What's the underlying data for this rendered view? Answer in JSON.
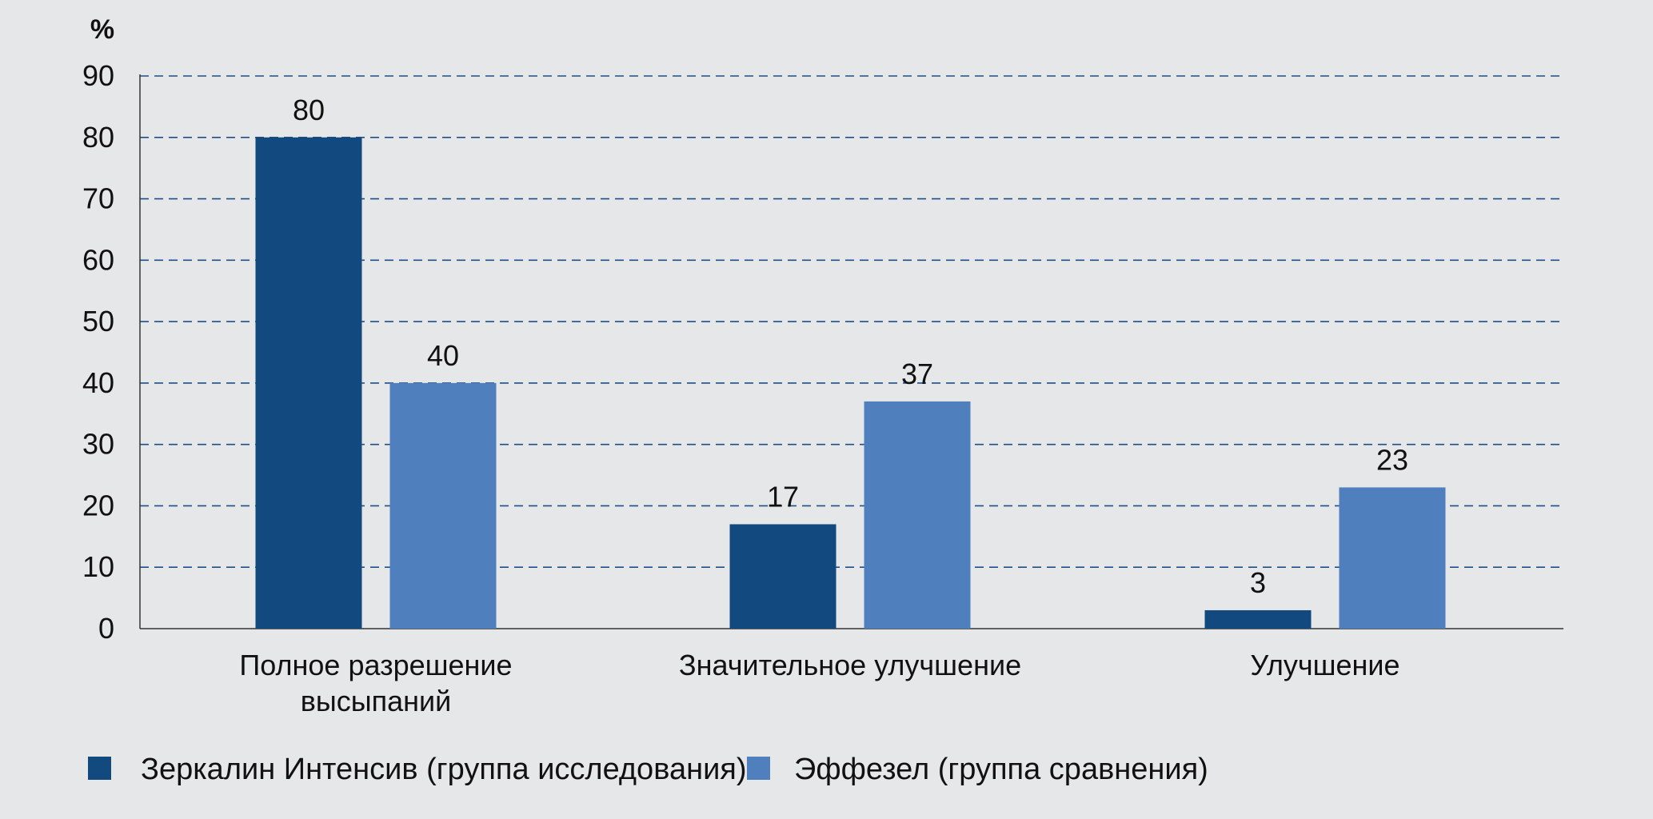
{
  "chart_data": {
    "type": "bar",
    "unit_label": "%",
    "categories": [
      [
        "Полное разрешение",
        "высыпаний"
      ],
      [
        "Значительное улучшение"
      ],
      [
        "Улучшение"
      ]
    ],
    "series": [
      {
        "name": "Зеркалин Интенсив (группа исследования)",
        "values": [
          80,
          17,
          3
        ],
        "color": "#124a80"
      },
      {
        "name": "Эффезел (группа сравнения)",
        "values": [
          40,
          37,
          23
        ],
        "color": "#4f80bd"
      }
    ],
    "value_labels": [
      [
        "80",
        "17",
        "3"
      ],
      [
        "40",
        "37",
        "23"
      ]
    ],
    "yticks": [
      "0",
      "10",
      "20",
      "30",
      "40",
      "50",
      "60",
      "70",
      "80",
      "90"
    ],
    "ylim": [
      0,
      90
    ],
    "grid": true,
    "grid_color": "#1f4f86",
    "legend_position": "bottom-left"
  }
}
